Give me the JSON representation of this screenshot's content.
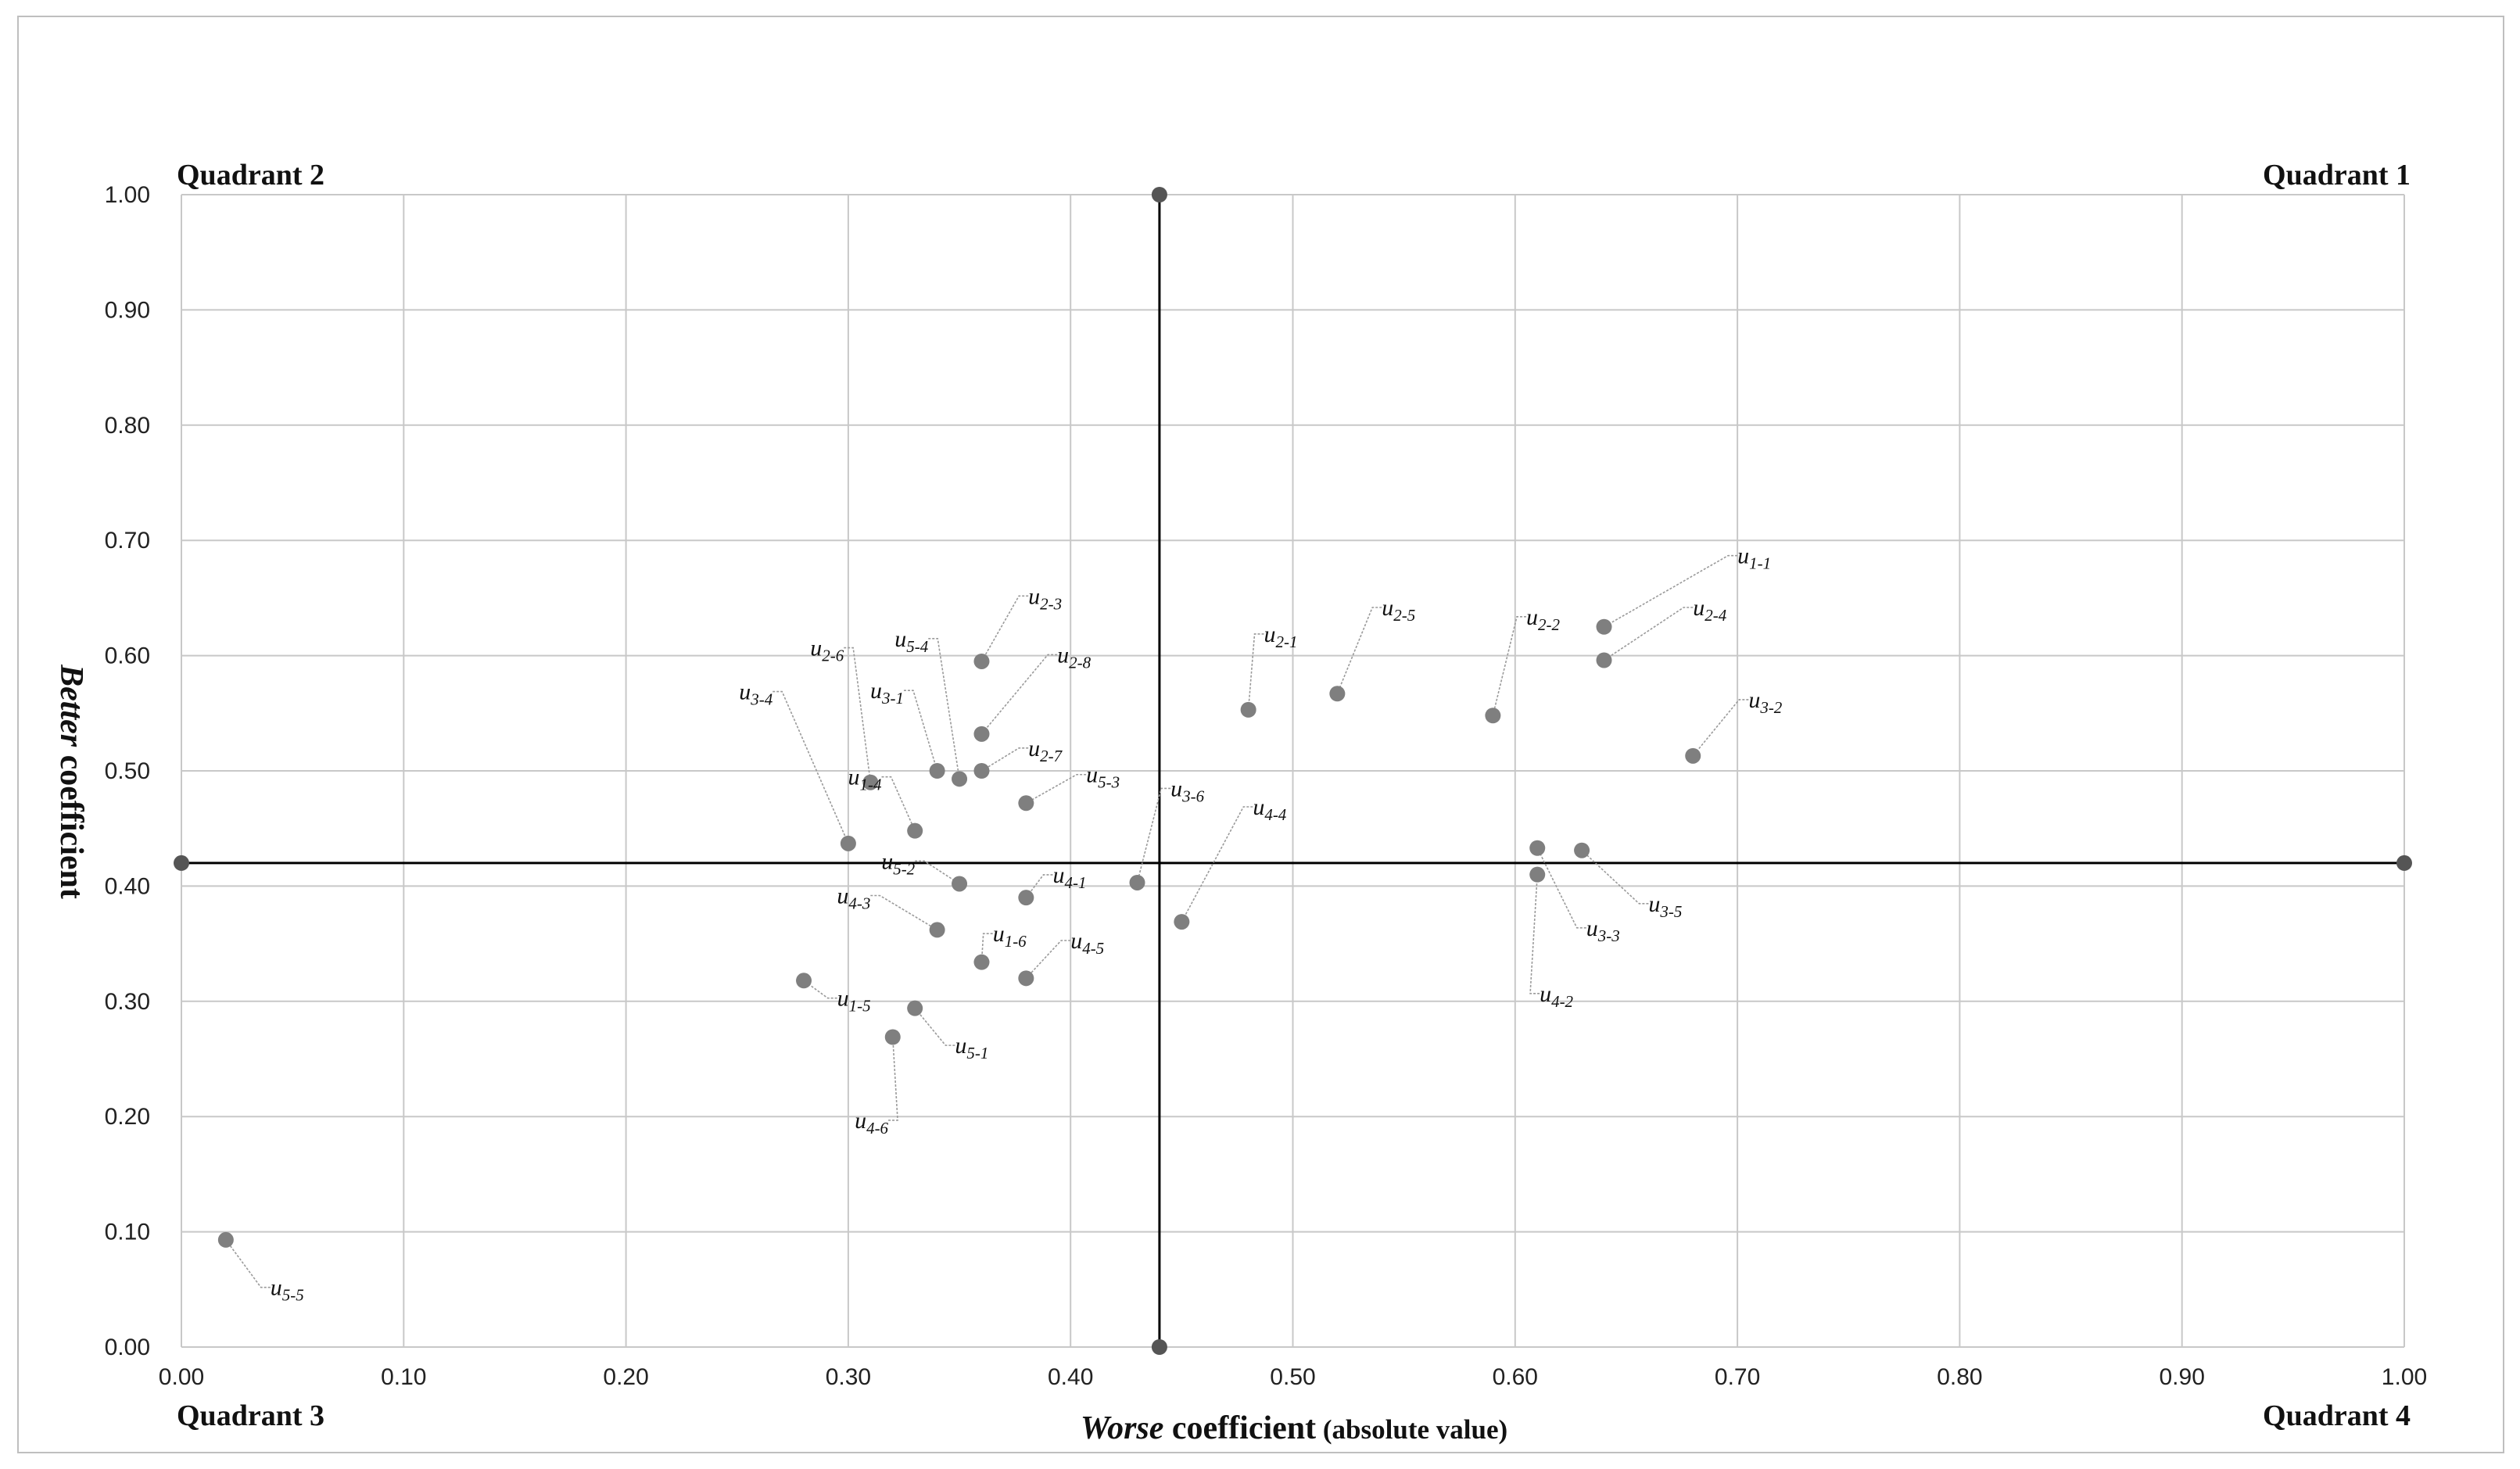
{
  "chart_data": {
    "type": "scatter",
    "xlabel": {
      "emph": "Worse",
      "main": " coefficient",
      "note": " (absolute value)"
    },
    "ylabel": {
      "emph": "Better",
      "main": " coefficient"
    },
    "xlim": [
      0,
      1
    ],
    "ylim": [
      0,
      1
    ],
    "xticks": [
      "0.00",
      "0.10",
      "0.20",
      "0.30",
      "0.40",
      "0.50",
      "0.60",
      "0.70",
      "0.80",
      "0.90",
      "1.00"
    ],
    "yticks": [
      "0.00",
      "0.10",
      "0.20",
      "0.30",
      "0.40",
      "0.50",
      "0.60",
      "0.70",
      "0.80",
      "0.90",
      "1.00"
    ],
    "grid": true,
    "quadrants": {
      "q1": "Quadrant 1",
      "q2": "Quadrant 2",
      "q3": "Quadrant 3",
      "q4": "Quadrant 4"
    },
    "divider": {
      "x": 0.44,
      "y": 0.42
    },
    "colors": {
      "point": "#7f7f7f",
      "divider": "#000000",
      "grid": "#c8c8c8",
      "leader": "#9a9a9a",
      "divider_end": "#555555"
    },
    "points": [
      {
        "base": "u",
        "sub": "1-1",
        "x": 0.64,
        "y": 0.625,
        "lx": 0.7,
        "ly": 0.68
      },
      {
        "base": "u",
        "sub": "2-4",
        "x": 0.64,
        "y": 0.596,
        "lx": 0.68,
        "ly": 0.635
      },
      {
        "base": "u",
        "sub": "3-2",
        "x": 0.68,
        "y": 0.513,
        "lx": 0.705,
        "ly": 0.555
      },
      {
        "base": "u",
        "sub": "2-2",
        "x": 0.59,
        "y": 0.548,
        "lx": 0.605,
        "ly": 0.627
      },
      {
        "base": "u",
        "sub": "2-5",
        "x": 0.52,
        "y": 0.567,
        "lx": 0.54,
        "ly": 0.635
      },
      {
        "base": "u",
        "sub": "2-1",
        "x": 0.48,
        "y": 0.553,
        "lx": 0.487,
        "ly": 0.612
      },
      {
        "base": "u",
        "sub": "3-6",
        "x": 0.43,
        "y": 0.403,
        "lx": 0.445,
        "ly": 0.478
      },
      {
        "base": "u",
        "sub": "4-4",
        "x": 0.45,
        "y": 0.369,
        "lx": 0.482,
        "ly": 0.462
      },
      {
        "base": "u",
        "sub": "3-5",
        "x": 0.63,
        "y": 0.431,
        "lx": 0.66,
        "ly": 0.378
      },
      {
        "base": "u",
        "sub": "3-3",
        "x": 0.61,
        "y": 0.433,
        "lx": 0.632,
        "ly": 0.357
      },
      {
        "base": "u",
        "sub": "4-2",
        "x": 0.61,
        "y": 0.41,
        "lx": 0.611,
        "ly": 0.3
      },
      {
        "base": "u",
        "sub": "2-3",
        "x": 0.36,
        "y": 0.595,
        "lx": 0.381,
        "ly": 0.645
      },
      {
        "base": "u",
        "sub": "2-8",
        "x": 0.36,
        "y": 0.532,
        "lx": 0.394,
        "ly": 0.594
      },
      {
        "base": "u",
        "sub": "5-4",
        "x": 0.35,
        "y": 0.493,
        "lx": 0.336,
        "ly": 0.608
      },
      {
        "base": "u",
        "sub": "2-7",
        "x": 0.36,
        "y": 0.5,
        "lx": 0.381,
        "ly": 0.513
      },
      {
        "base": "u",
        "sub": "5-3",
        "x": 0.38,
        "y": 0.472,
        "lx": 0.407,
        "ly": 0.49
      },
      {
        "base": "u",
        "sub": "3-1",
        "x": 0.34,
        "y": 0.5,
        "lx": 0.325,
        "ly": 0.563
      },
      {
        "base": "u",
        "sub": "2-6",
        "x": 0.31,
        "y": 0.49,
        "lx": 0.298,
        "ly": 0.6
      },
      {
        "base": "u",
        "sub": "3-4",
        "x": 0.3,
        "y": 0.437,
        "lx": 0.266,
        "ly": 0.562
      },
      {
        "base": "u",
        "sub": "1-4",
        "x": 0.33,
        "y": 0.448,
        "lx": 0.315,
        "ly": 0.488
      },
      {
        "base": "u",
        "sub": "5-2",
        "x": 0.35,
        "y": 0.402,
        "lx": 0.33,
        "ly": 0.415
      },
      {
        "base": "u",
        "sub": "4-1",
        "x": 0.38,
        "y": 0.39,
        "lx": 0.392,
        "ly": 0.403
      },
      {
        "base": "u",
        "sub": "4-3",
        "x": 0.34,
        "y": 0.362,
        "lx": 0.31,
        "ly": 0.385
      },
      {
        "base": "u",
        "sub": "1-6",
        "x": 0.36,
        "y": 0.334,
        "lx": 0.365,
        "ly": 0.352
      },
      {
        "base": "u",
        "sub": "4-5",
        "x": 0.38,
        "y": 0.32,
        "lx": 0.4,
        "ly": 0.346
      },
      {
        "base": "u",
        "sub": "1-5",
        "x": 0.28,
        "y": 0.318,
        "lx": 0.295,
        "ly": 0.296
      },
      {
        "base": "u",
        "sub": "5-1",
        "x": 0.33,
        "y": 0.294,
        "lx": 0.348,
        "ly": 0.255
      },
      {
        "base": "u",
        "sub": "4-6",
        "x": 0.32,
        "y": 0.269,
        "lx": 0.318,
        "ly": 0.19
      },
      {
        "base": "u",
        "sub": "5-5",
        "x": 0.02,
        "y": 0.093,
        "lx": 0.04,
        "ly": 0.045
      }
    ]
  }
}
